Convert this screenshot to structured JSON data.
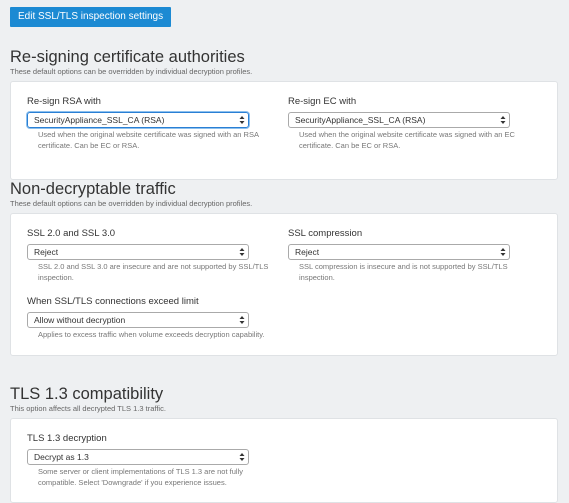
{
  "button": "Edit SSL/TLS inspection settings",
  "sections": [
    {
      "title": "Re-signing certificate authorities",
      "subtitle": "These default options can be overridden by individual decryption profiles.",
      "fields": [
        {
          "label": "Re-sign RSA with",
          "value": "SecurityAppliance_SSL_CA (RSA)",
          "help": "Used when the original website certificate was signed with an RSA certificate. Can be EC or RSA."
        },
        {
          "label": "Re-sign EC with",
          "value": "SecurityAppliance_SSL_CA (RSA)",
          "help": "Used when the original website certificate was signed with an EC certificate. Can be EC or RSA."
        }
      ]
    },
    {
      "title": "Non-decryptable traffic",
      "subtitle": "These default options can be overridden by individual decryption profiles.",
      "fields": [
        {
          "label": "SSL 2.0 and SSL 3.0",
          "value": "Reject",
          "help": "SSL 2.0 and SSL 3.0 are insecure and are not supported by SSL/TLS inspection."
        },
        {
          "label": "SSL compression",
          "value": "Reject",
          "help": "SSL compression is insecure and is not supported by SSL/TLS inspection."
        },
        {
          "label": "When SSL/TLS connections exceed limit",
          "value": "Allow without decryption",
          "help": "Applies to excess traffic when volume exceeds decryption capability."
        }
      ]
    },
    {
      "title": "TLS 1.3 compatibility",
      "subtitle": "This option affects all decrypted TLS 1.3 traffic.",
      "fields": [
        {
          "label": "TLS 1.3 decryption",
          "value": "Decrypt as 1.3",
          "help": "Some server or client implementations of TLS 1.3 are not fully compatible. Select 'Downgrade' if you experience issues."
        }
      ]
    }
  ]
}
